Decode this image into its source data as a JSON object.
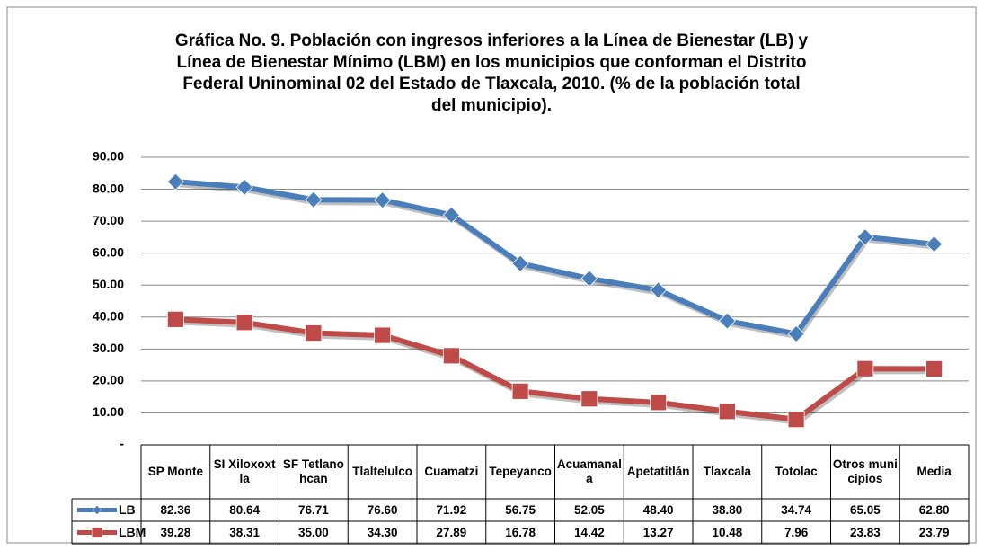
{
  "chart_data": {
    "type": "line",
    "title": "Gráfica No.  9. Población con ingresos inferiores a la Línea de Bienestar (LB) y Línea de Bienestar Mínimo (LBM) en los municipios que conforman el Distrito Federal Uninominal 02 del Estado de Tlaxcala, 2010. (% de la población total del municipio).",
    "categories": [
      "SP Monte",
      "SI Xiloxoxtla",
      "SF Tetlanohcan",
      "Tlaltelulco",
      "Cuamatzi",
      "Tepeyanco",
      "Acuamanala",
      "Apetatitlán",
      "Tlaxcala",
      "Totolac",
      "Otros municipios",
      "Media"
    ],
    "series": [
      {
        "name": "LB",
        "color": "#4a7ebb",
        "marker": "diamond",
        "values": [
          82.36,
          80.64,
          76.71,
          76.6,
          71.92,
          56.75,
          52.05,
          48.4,
          38.8,
          34.74,
          65.05,
          62.8
        ],
        "value_labels": [
          "82.36",
          "80.64",
          "76.71",
          "76.60",
          "71.92",
          "56.75",
          "52.05",
          "48.40",
          "38.80",
          "34.74",
          "65.05",
          "62.80"
        ]
      },
      {
        "name": "LBM",
        "color": "#be4b48",
        "marker": "square",
        "values": [
          39.28,
          38.31,
          35.0,
          34.3,
          27.89,
          16.78,
          14.42,
          13.27,
          10.48,
          7.96,
          23.83,
          23.79
        ],
        "value_labels": [
          "39.28",
          "38.31",
          "35.00",
          "34.30",
          "27.89",
          "16.78",
          "14.42",
          "13.27",
          "10.48",
          "7.96",
          "23.83",
          "23.79"
        ]
      }
    ],
    "ylim": [
      0,
      90
    ],
    "yticks": [
      {
        "value": 0,
        "label": "-"
      },
      {
        "value": 10,
        "label": "10.00"
      },
      {
        "value": 20,
        "label": "20.00"
      },
      {
        "value": 30,
        "label": "30.00"
      },
      {
        "value": 40,
        "label": "40.00"
      },
      {
        "value": 50,
        "label": "50.00"
      },
      {
        "value": 60,
        "label": "60.00"
      },
      {
        "value": 70,
        "label": "70.00"
      },
      {
        "value": 80,
        "label": "80.00"
      },
      {
        "value": 90,
        "label": "90.00"
      }
    ],
    "grid": true,
    "data_table": true
  }
}
